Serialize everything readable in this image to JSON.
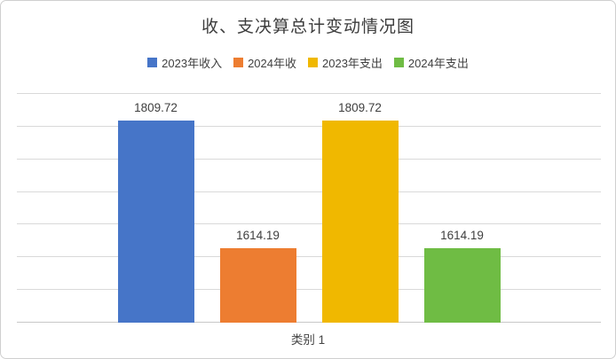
{
  "chart_data": {
    "type": "bar",
    "title": "收、支决算总计变动情况图",
    "categories": [
      "类别 1"
    ],
    "series": [
      {
        "name": "2023年收入",
        "values": [
          1809.72
        ],
        "label": "1809.72",
        "color": "#4675C8"
      },
      {
        "name": "2024年收",
        "values": [
          1614.19
        ],
        "label": "1614.19",
        "color": "#ED7D31"
      },
      {
        "name": "2023年支出",
        "values": [
          1809.72
        ],
        "label": "1809.72",
        "color": "#F0B800"
      },
      {
        "name": "2024年支出",
        "values": [
          1614.19
        ],
        "label": "1614.19",
        "color": "#6FBC44"
      }
    ],
    "ylim": [
      1500,
      1850
    ],
    "y_tick_step": 50,
    "grid": true,
    "y_tick_labels_visible": false,
    "legend_position": "top-center",
    "data_labels_visible": true,
    "xlabel": "",
    "ylabel": ""
  }
}
